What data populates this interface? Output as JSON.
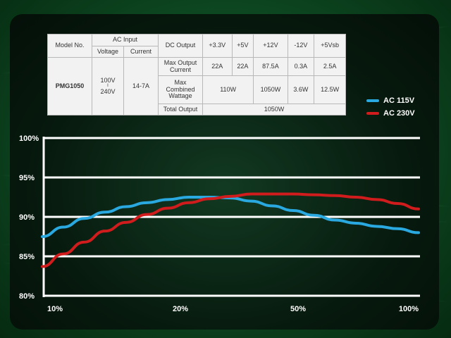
{
  "spec_table": {
    "model_header": "Model No.",
    "ac_input_header": "AC Input",
    "voltage_header": "Voltage",
    "current_header": "Current",
    "dc_output_header": "DC Output",
    "rails": [
      "+3.3V",
      "+5V",
      "+12V",
      "-12V",
      "+5Vsb"
    ],
    "model": "PMG1050",
    "voltage_top": "100V",
    "voltage_sep": "I",
    "voltage_bottom": "240V",
    "current": "14-7A",
    "max_output_current_label": "Max Output Current",
    "max_output_current": [
      "22A",
      "22A",
      "87.5A",
      "0.3A",
      "2.5A"
    ],
    "max_combined_label": "Max Combined Wattage",
    "combined_33_5": "110W",
    "combined_12": "1050W",
    "combined_neg12": "3.6W",
    "combined_5vsb": "12.5W",
    "total_output_label": "Total Output",
    "total_output": "1050W"
  },
  "colors": {
    "ac115": "#2aa8e0",
    "ac230": "#d01c1c",
    "grid": "#ffffff"
  },
  "chart_data": {
    "type": "line",
    "x_categories": [
      "10%",
      "20%",
      "50%",
      "100%"
    ],
    "ylim": [
      80,
      100
    ],
    "y_ticks": [
      "100%",
      "95%",
      "90%",
      "85%",
      "80%"
    ],
    "y_tick_values": [
      100,
      95,
      90,
      85,
      80
    ],
    "grid": true,
    "legend_position": "right",
    "series": [
      {
        "name": "AC 115V",
        "color": "#2aa8e0",
        "x": [
          10,
          15,
          20,
          25,
          30,
          35,
          40,
          45,
          50,
          55,
          60,
          65,
          70,
          75,
          80,
          85,
          90,
          95,
          100
        ],
        "y": [
          87.5,
          88.7,
          89.8,
          90.6,
          91.3,
          91.8,
          92.2,
          92.5,
          92.5,
          92.4,
          92.0,
          91.4,
          90.8,
          90.2,
          89.6,
          89.2,
          88.8,
          88.5,
          88.0
        ]
      },
      {
        "name": "AC 230V",
        "color": "#d01c1c",
        "x": [
          10,
          15,
          20,
          25,
          30,
          35,
          40,
          45,
          50,
          55,
          60,
          65,
          70,
          75,
          80,
          85,
          90,
          95,
          100
        ],
        "y": [
          83.7,
          85.3,
          86.8,
          88.2,
          89.3,
          90.3,
          91.1,
          91.8,
          92.3,
          92.6,
          92.9,
          92.9,
          92.9,
          92.8,
          92.7,
          92.5,
          92.2,
          91.7,
          91.0
        ]
      }
    ]
  }
}
